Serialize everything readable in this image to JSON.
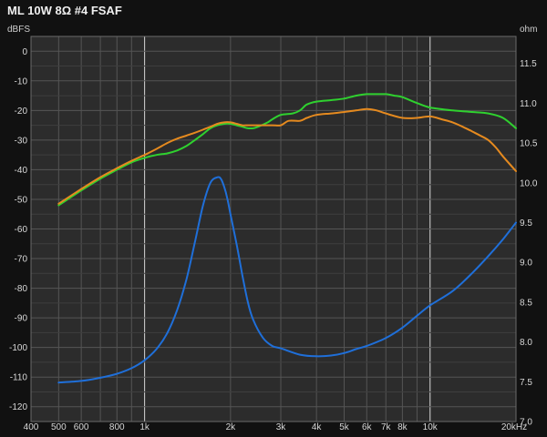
{
  "chart_data": {
    "type": "line",
    "title": "ML 10W 8Ω #4 FSAF",
    "ylabel": "dBFS",
    "y2label": "ohm",
    "xscale": "log",
    "xlim": [
      400,
      20000
    ],
    "ylim": [
      -125,
      5
    ],
    "y2lim": [
      7.0,
      11.84
    ],
    "grid": true,
    "x_ticks": [
      {
        "v": 400,
        "label": "400"
      },
      {
        "v": 500,
        "label": "500"
      },
      {
        "v": 600,
        "label": "600"
      },
      {
        "v": 800,
        "label": "800"
      },
      {
        "v": 1000,
        "label": "1k"
      },
      {
        "v": 2000,
        "label": "2k"
      },
      {
        "v": 3000,
        "label": "3k"
      },
      {
        "v": 4000,
        "label": "4k"
      },
      {
        "v": 5000,
        "label": "5k"
      },
      {
        "v": 6000,
        "label": "6k"
      },
      {
        "v": 7000,
        "label": "7k"
      },
      {
        "v": 8000,
        "label": "8k"
      },
      {
        "v": 10000,
        "label": "10k"
      },
      {
        "v": 20000,
        "label": "20kHz"
      }
    ],
    "y_ticks": [
      0,
      -10,
      -20,
      -30,
      -40,
      -50,
      -60,
      -70,
      -80,
      -90,
      -100,
      -110,
      -120
    ],
    "y2_ticks": [
      "11.5",
      "11.0",
      "10.5",
      "10.0",
      "9.5",
      "9.0",
      "8.5",
      "8.0",
      "7.5",
      "7.0"
    ],
    "series": [
      {
        "axis": "left",
        "color": "#2fd12f",
        "x": [
          500,
          600,
          700,
          800,
          900,
          1000,
          1100,
          1200,
          1300,
          1400,
          1500,
          1600,
          1700,
          1800,
          1900,
          2000,
          2100,
          2200,
          2300,
          2400,
          2500,
          2700,
          2800,
          3000,
          3300,
          3500,
          3700,
          4000,
          4500,
          5000,
          5500,
          6000,
          6500,
          7000,
          7500,
          8000,
          9000,
          10000,
          12000,
          14000,
          16000,
          18000,
          20000
        ],
        "y": [
          -52,
          -47,
          -43,
          -40,
          -37.5,
          -36,
          -35,
          -34.5,
          -33.5,
          -32,
          -30,
          -28,
          -26,
          -25,
          -24.5,
          -24.5,
          -25,
          -25.5,
          -26,
          -26,
          -25.5,
          -24,
          -23,
          -21.5,
          -21,
          -20,
          -18,
          -17,
          -16.5,
          -16,
          -15,
          -14.5,
          -14.5,
          -14.5,
          -15,
          -15.5,
          -17.5,
          -19,
          -20,
          -20.5,
          -21,
          -22.5,
          -26
        ]
      },
      {
        "axis": "left",
        "color": "#e58a1f",
        "x": [
          500,
          600,
          700,
          800,
          900,
          1000,
          1100,
          1200,
          1300,
          1400,
          1500,
          1600,
          1700,
          1800,
          1900,
          2000,
          2100,
          2200,
          2300,
          2500,
          2800,
          3000,
          3200,
          3500,
          3700,
          4000,
          4500,
          5000,
          5500,
          6000,
          6500,
          7000,
          8000,
          9000,
          10000,
          11000,
          12000,
          13000,
          14000,
          15000,
          16000,
          17000,
          18000,
          20000
        ],
        "y": [
          -51.5,
          -46.5,
          -42.5,
          -39.5,
          -37,
          -35,
          -33,
          -31,
          -29.5,
          -28.5,
          -27.5,
          -26.5,
          -25.5,
          -24.5,
          -24,
          -24,
          -24.5,
          -25,
          -25,
          -25,
          -25,
          -25,
          -23.5,
          -23.5,
          -22.5,
          -21.5,
          -21,
          -20.5,
          -20,
          -19.5,
          -20,
          -21,
          -22.5,
          -22.5,
          -22,
          -23,
          -24,
          -25.5,
          -27,
          -28.5,
          -30,
          -32.5,
          -35.5,
          -40.5
        ]
      },
      {
        "axis": "right",
        "color": "#1f6fd9",
        "x": [
          500,
          600,
          700,
          800,
          900,
          1000,
          1100,
          1200,
          1300,
          1400,
          1500,
          1600,
          1700,
          1800,
          1850,
          1900,
          1950,
          2000,
          2100,
          2200,
          2300,
          2400,
          2600,
          2800,
          3000,
          3500,
          4000,
          4500,
          5000,
          5500,
          6000,
          7000,
          8000,
          9000,
          10000,
          12000,
          14000,
          16000,
          18000,
          20000
        ],
        "y": [
          7.49,
          7.51,
          7.55,
          7.6,
          7.67,
          7.77,
          7.91,
          8.11,
          8.4,
          8.78,
          9.25,
          9.71,
          10.0,
          10.07,
          10.05,
          9.95,
          9.8,
          9.6,
          9.23,
          8.84,
          8.5,
          8.28,
          8.05,
          7.95,
          7.92,
          7.84,
          7.82,
          7.83,
          7.86,
          7.91,
          7.95,
          8.05,
          8.18,
          8.33,
          8.46,
          8.64,
          8.86,
          9.08,
          9.29,
          9.5
        ]
      }
    ]
  }
}
